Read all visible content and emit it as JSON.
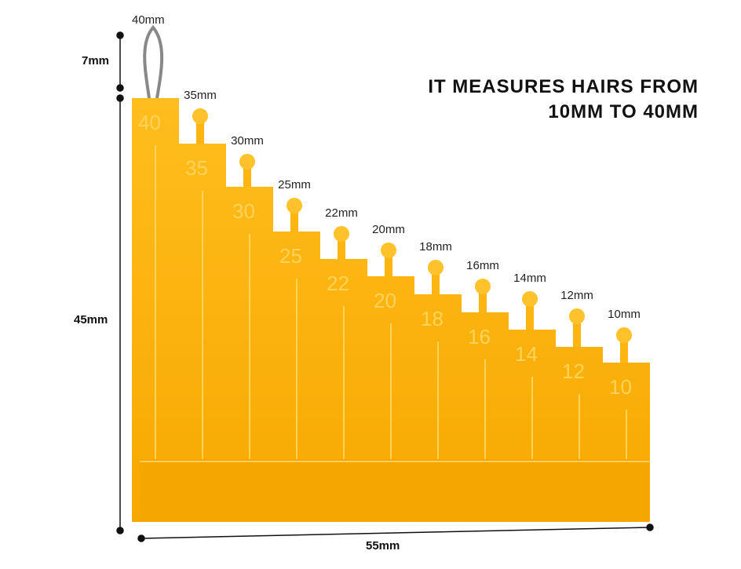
{
  "headline": [
    "IT MEASURES HAIRS FROM",
    "10MM TO 40MM"
  ],
  "steps": [
    {
      "label": "40mm",
      "mark": "40"
    },
    {
      "label": "35mm",
      "mark": "35"
    },
    {
      "label": "30mm",
      "mark": "30"
    },
    {
      "label": "25mm",
      "mark": "25"
    },
    {
      "label": "22mm",
      "mark": "22"
    },
    {
      "label": "20mm",
      "mark": "20"
    },
    {
      "label": "18mm",
      "mark": "18"
    },
    {
      "label": "16mm",
      "mark": "16"
    },
    {
      "label": "14mm",
      "mark": "14"
    },
    {
      "label": "12mm",
      "mark": "12"
    },
    {
      "label": "10mm",
      "mark": "10"
    }
  ],
  "dimensions": {
    "loop": "7mm",
    "height": "45mm",
    "width": "55mm"
  }
}
